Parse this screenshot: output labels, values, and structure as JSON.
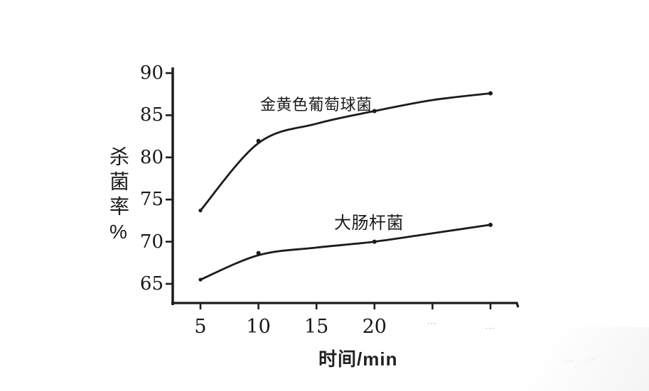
{
  "figure": {
    "background": "#ffffff",
    "ink_color": "#1c1c1c",
    "style_note": "black-ink scanned textbook line chart, no gridlines, no frame"
  },
  "chart_data": {
    "type": "line",
    "title": "",
    "xlabel": "时间/min",
    "ylabel": "杀菌率%",
    "x": [
      5,
      10,
      15,
      20,
      25,
      30
    ],
    "series": [
      {
        "name": "金黄色葡萄球菌",
        "values": [
          73.7,
          81.7,
          84.0,
          85.5,
          86.8,
          87.6
        ]
      },
      {
        "name": "大肠杆菌",
        "values": [
          65.5,
          68.4,
          69.3,
          70.0,
          71.0,
          72.0
        ]
      }
    ],
    "marker_x": [
      10,
      20,
      30
    ],
    "x_ticks": [
      5,
      10,
      15,
      20,
      25,
      30
    ],
    "x_tick_labels": [
      "5",
      "10",
      "15",
      "20",
      "⋯",
      "⋯"
    ],
    "x_tick_faded": [
      false,
      false,
      false,
      false,
      true,
      true
    ],
    "y_ticks": [
      65,
      70,
      75,
      80,
      85,
      90
    ],
    "xlim": [
      2.5,
      32.5
    ],
    "ylim": [
      62.7,
      90.6
    ],
    "grid": false,
    "legend_position": "inline labels next to each curve",
    "note": "tick labels at x=25 and x=30 are faded/illegible in the scan"
  },
  "artifacts": {
    "scan_smudge": "⋯ ⋯"
  }
}
